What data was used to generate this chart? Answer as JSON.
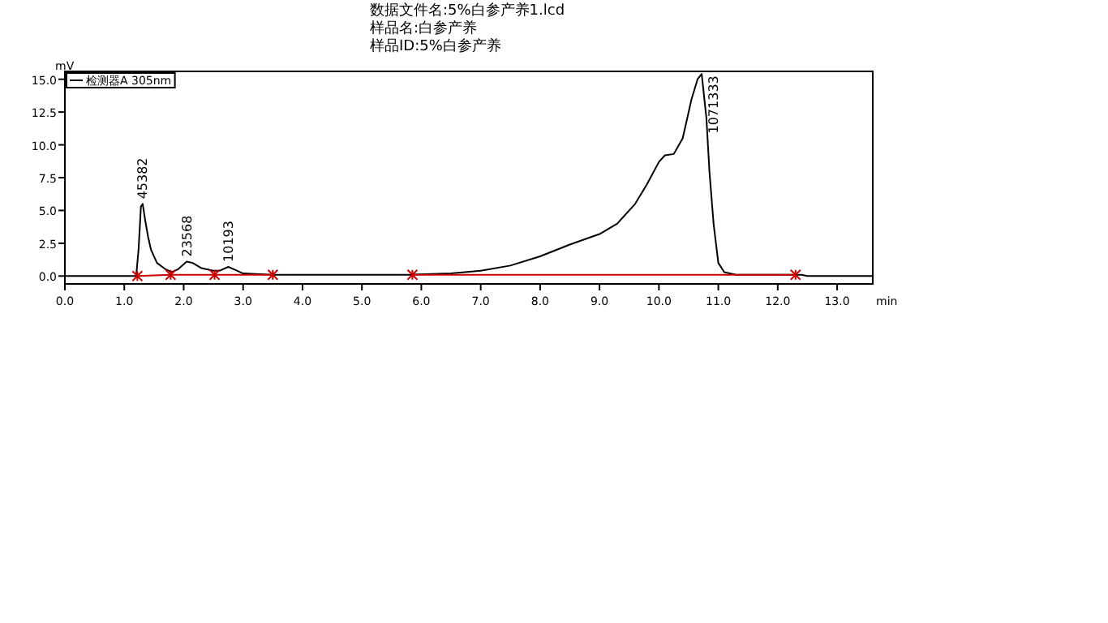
{
  "chart_data": {
    "type": "line",
    "title": "数据文件名:5%白参产养1.lcd",
    "subtitle": "样品名:白参产养",
    "annotations": [
      "样品ID:5%白参产养",
      {
        "text": "45382",
        "x": 1.3,
        "y": 5.5
      },
      {
        "text": "23568",
        "x": 2.05,
        "y": 1.1
      },
      {
        "text": "10193",
        "x": 2.75,
        "y": 0.7
      },
      {
        "text": "1071333",
        "x": 10.72,
        "y": 15.4
      }
    ],
    "xlabel": "min",
    "ylabel": "mV",
    "xlim": [
      0,
      13.6
    ],
    "ylim": [
      -0.6,
      15.6
    ],
    "xticks": [
      {
        "value": 0,
        "label": "0.0"
      },
      {
        "value": 1,
        "label": "1.0"
      },
      {
        "value": 2,
        "label": "2.0"
      },
      {
        "value": 3,
        "label": "3.0"
      },
      {
        "value": 4,
        "label": "4.0"
      },
      {
        "value": 5,
        "label": "5.0"
      },
      {
        "value": 6,
        "label": "6.0"
      },
      {
        "value": 7,
        "label": "7.0"
      },
      {
        "value": 8,
        "label": "8.0"
      },
      {
        "value": 9,
        "label": "9.0"
      },
      {
        "value": 10,
        "label": "10.0"
      },
      {
        "value": 11,
        "label": "11.0"
      },
      {
        "value": 12,
        "label": "12.0"
      },
      {
        "value": 13,
        "label": "13.0"
      }
    ],
    "yticks": [
      {
        "value": 0,
        "label": "0.0"
      },
      {
        "value": 2.5,
        "label": "2.5"
      },
      {
        "value": 5,
        "label": "5.0"
      },
      {
        "value": 7.5,
        "label": "7.5"
      },
      {
        "value": 10,
        "label": "10.0"
      },
      {
        "value": 12.5,
        "label": "12.5"
      },
      {
        "value": 15,
        "label": "15.0"
      }
    ],
    "legend": "top left",
    "series": [
      {
        "name": "检测器A 305nm",
        "color": "#000000",
        "x": [
          0,
          1.2,
          1.24,
          1.28,
          1.31,
          1.35,
          1.4,
          1.45,
          1.55,
          1.7,
          1.8,
          1.9,
          2.0,
          2.05,
          2.15,
          2.3,
          2.5,
          2.6,
          2.75,
          2.85,
          3.0,
          3.5,
          5.8,
          6.5,
          7.0,
          7.5,
          8.0,
          8.5,
          9.0,
          9.3,
          9.6,
          9.8,
          10.0,
          10.1,
          10.25,
          10.4,
          10.55,
          10.65,
          10.72,
          10.8,
          10.85,
          10.92,
          11.0,
          11.1,
          11.3,
          12.4,
          12.5,
          13.6
        ],
        "values": [
          0,
          0,
          2.0,
          5.3,
          5.5,
          4.3,
          3.0,
          2.0,
          1.0,
          0.5,
          0.3,
          0.5,
          0.9,
          1.1,
          1.0,
          0.6,
          0.4,
          0.4,
          0.7,
          0.5,
          0.2,
          0.1,
          0.1,
          0.2,
          0.4,
          0.8,
          1.5,
          2.4,
          3.2,
          4.0,
          5.5,
          7.0,
          8.7,
          9.2,
          9.3,
          10.5,
          13.5,
          15.0,
          15.4,
          12.0,
          8.0,
          4.0,
          1.0,
          0.3,
          0.1,
          0.1,
          0,
          0
        ]
      },
      {
        "color": "#cc0000",
        "marker": "cross",
        "x": [
          1.22,
          1.78,
          2.52,
          3.5
        ],
        "values": [
          0,
          0.1,
          0.1,
          0.1
        ]
      },
      {
        "color": "#cc0000",
        "marker": "cross",
        "x": [
          5.85,
          12.3
        ],
        "values": [
          0.1,
          0.1
        ]
      }
    ]
  }
}
